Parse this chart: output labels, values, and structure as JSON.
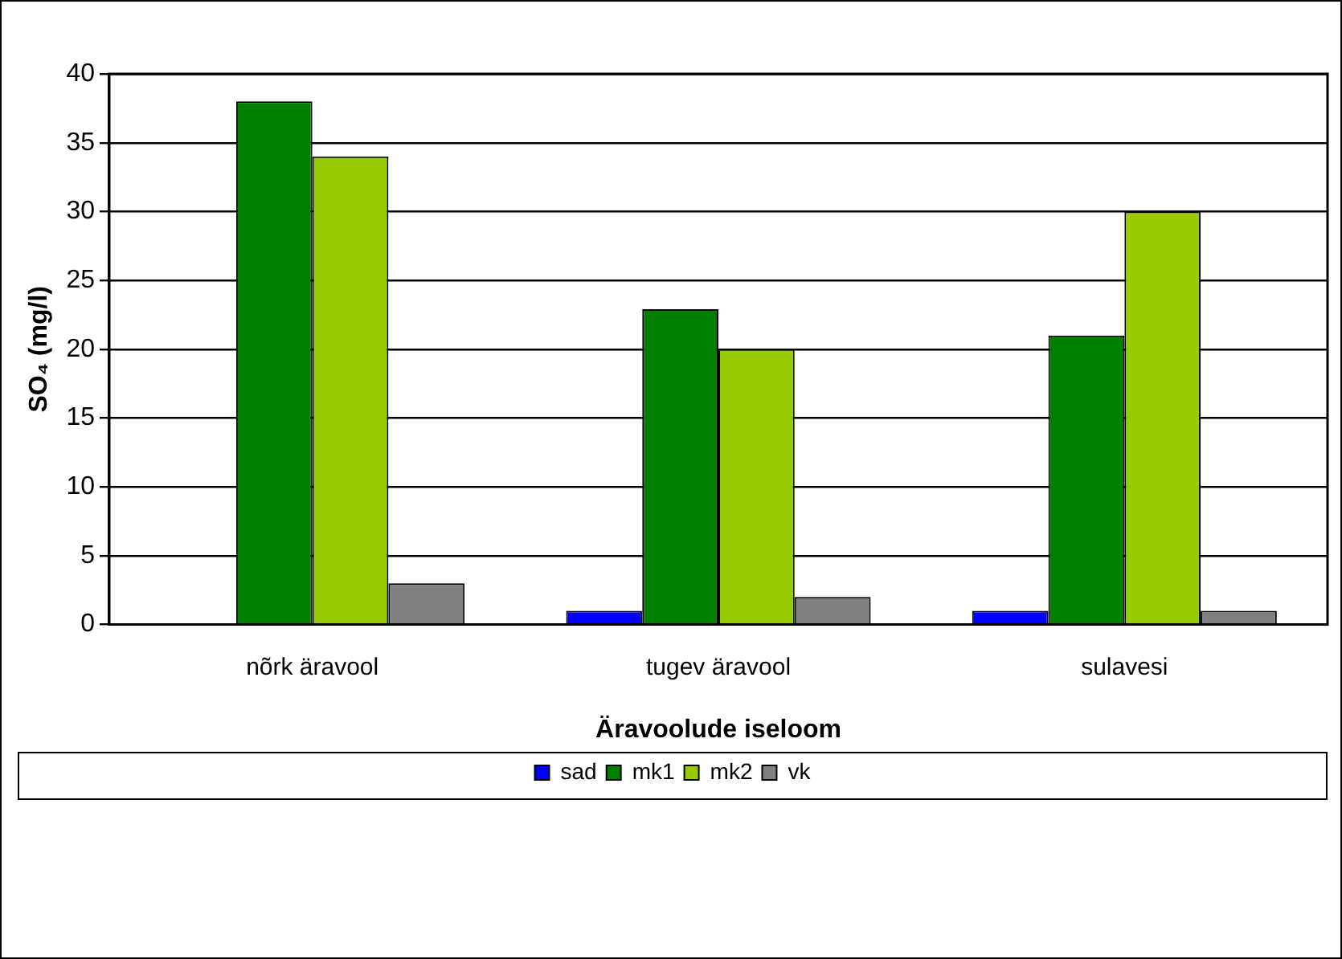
{
  "chart_data": {
    "type": "bar",
    "xlabel": "Äravoolude iseloom",
    "ylabel": "SO₄ (mg/l)",
    "categories": [
      "nõrk äravool",
      "tugev äravool",
      "sulavesi"
    ],
    "series": [
      {
        "name": "sad",
        "color": "#0000ff",
        "values": [
          0,
          1,
          1
        ]
      },
      {
        "name": "mk1",
        "color": "#008000",
        "values": [
          38,
          22.9,
          21
        ]
      },
      {
        "name": "mk2",
        "color": "#99cc00",
        "values": [
          34,
          20,
          30
        ]
      },
      {
        "name": "vk",
        "color": "#808080",
        "values": [
          3,
          2,
          1
        ]
      }
    ],
    "ylim": [
      0,
      40
    ],
    "yticks": [
      0,
      5,
      10,
      15,
      20,
      25,
      30,
      35,
      40
    ],
    "grid": "y",
    "legend": "bottom"
  }
}
